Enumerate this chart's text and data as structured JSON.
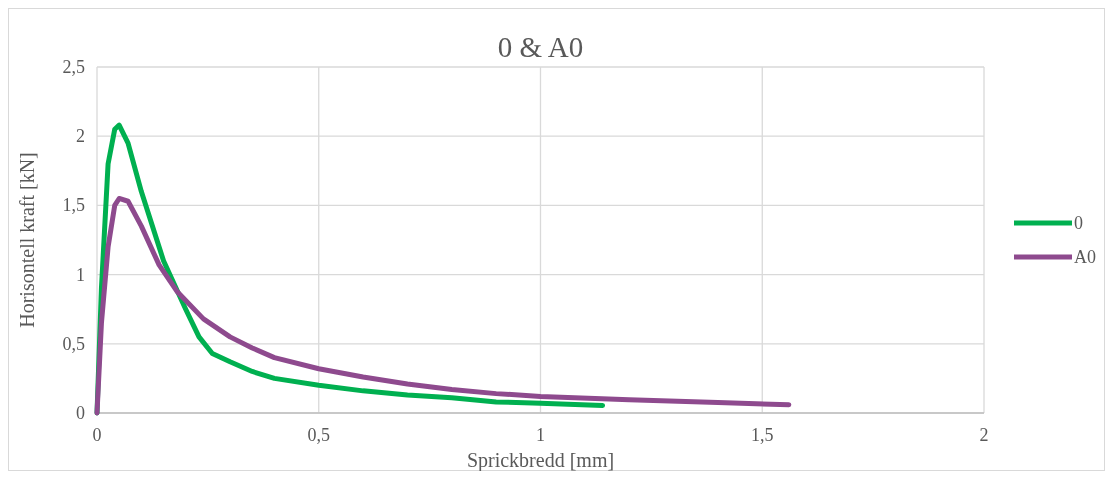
{
  "chart_data": {
    "type": "line",
    "title": "0 & A0",
    "xlabel": "Sprickbredd [mm]",
    "ylabel": "Horisontell kraft [kN]",
    "xlim": [
      0,
      2
    ],
    "xticks": [
      0,
      {
        "value": 0.5,
        "label": "0,5"
      },
      1,
      {
        "value": 1.5,
        "label": "1,5"
      },
      2
    ],
    "ylim": [
      0,
      2.5
    ],
    "yticks": [
      0,
      {
        "value": 0.5,
        "label": "0,5"
      },
      1,
      {
        "value": 1.5,
        "label": "1,5"
      },
      2,
      {
        "value": 2.5,
        "label": "2,5"
      }
    ],
    "grid": true,
    "legend": "right",
    "marker": "none",
    "line_style": "solid",
    "series": [
      {
        "name": "0",
        "color": "#00b050",
        "x": [
          0,
          0.01,
          0.025,
          0.04,
          0.05,
          0.07,
          0.1,
          0.15,
          0.2,
          0.23,
          0.26,
          0.3,
          0.35,
          0.4,
          0.5,
          0.6,
          0.7,
          0.8,
          0.9,
          1,
          1.14
        ],
        "values": [
          0,
          0.9,
          1.8,
          2.05,
          2.08,
          1.95,
          1.6,
          1.1,
          0.75,
          0.55,
          0.43,
          0.37,
          0.3,
          0.25,
          0.2,
          0.16,
          0.13,
          0.11,
          0.08,
          0.07,
          0.055
        ]
      },
      {
        "name": "A0",
        "color": "#8e4a8e",
        "x": [
          0,
          0.01,
          0.025,
          0.04,
          0.05,
          0.07,
          0.1,
          0.14,
          0.18,
          0.24,
          0.3,
          0.35,
          0.4,
          0.5,
          0.6,
          0.7,
          0.8,
          0.9,
          1,
          1.2,
          1.4,
          1.56
        ],
        "values": [
          0,
          0.65,
          1.2,
          1.5,
          1.55,
          1.53,
          1.35,
          1.07,
          0.88,
          0.68,
          0.55,
          0.47,
          0.4,
          0.32,
          0.26,
          0.21,
          0.17,
          0.14,
          0.12,
          0.095,
          0.075,
          0.06
        ]
      }
    ]
  }
}
